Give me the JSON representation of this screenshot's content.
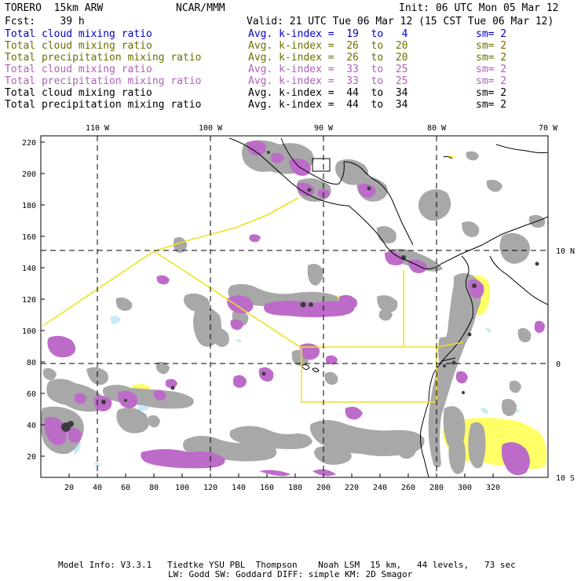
{
  "header": {
    "model": "TORERO  15km ARW",
    "center": "NCAR/MMM",
    "init": "Init: 06 UTC Mon 05 Mar 12",
    "fcst": "Fcst:    39 h",
    "valid": "Valid: 21 UTC Tue 06 Mar 12 (15 CST Tue 06 Mar 12)"
  },
  "legend": [
    {
      "field": "Total cloud mixing ratio",
      "index": "Avg. k-index =  19  to   4",
      "sm": "sm= 2",
      "color": "#0000cc"
    },
    {
      "field": "Total cloud mixing ratio",
      "index": "Avg. k-index =  26  to  20",
      "sm": "sm= 2",
      "color": "#6e6e00"
    },
    {
      "field": "Total precipitation mixing ratio",
      "index": "Avg. k-index =  26  to  20",
      "sm": "sm= 2",
      "color": "#6e6e00"
    },
    {
      "field": "Total cloud mixing ratio",
      "index": "Avg. k-index =  33  to  25",
      "sm": "sm= 2",
      "color": "#b060b8"
    },
    {
      "field": "Total precipitation mixing ratio",
      "index": "Avg. k-index =  33  to  25",
      "sm": "sm= 2",
      "color": "#b060b8"
    },
    {
      "field": "Total cloud mixing ratio",
      "index": "Avg. k-index =  44  to  34",
      "sm": "sm= 2",
      "color": "#000000"
    },
    {
      "field": "Total precipitation mixing ratio",
      "index": "Avg. k-index =  44  to  34",
      "sm": "sm= 2",
      "color": "#000000"
    }
  ],
  "map": {
    "lon_labels": [
      "110 W",
      "100 W",
      "90 W",
      "80 W",
      "70 W"
    ],
    "lat_labels": [
      "10 N",
      "0",
      "10 S"
    ],
    "y_ticks": [
      "220",
      "200",
      "180",
      "160",
      "140",
      "120",
      "100",
      "80",
      "60",
      "40",
      "20"
    ],
    "x_ticks": [
      "20",
      "40",
      "60",
      "80",
      "100",
      "120",
      "140",
      "160",
      "180",
      "200",
      "220",
      "240",
      "260",
      "280",
      "300",
      "320"
    ],
    "colors": {
      "gray_cloud": "#a8a8a8",
      "dark_cloud": "#3c3c3c",
      "purple": "#bc6cc8",
      "yellow": "#ffff66",
      "light_blue": "#c8ecf6",
      "flight_track": "#f0e020",
      "coast": "#000000"
    }
  },
  "footer": {
    "line1": "Model Info: V3.3.1   Tiedtke YSU PBL  Thompson    Noah LSM  15 km,   44 levels,   73 sec",
    "line2": "LW: Godd SW: Goddard DIFF: simple KM: 2D Smagor"
  }
}
